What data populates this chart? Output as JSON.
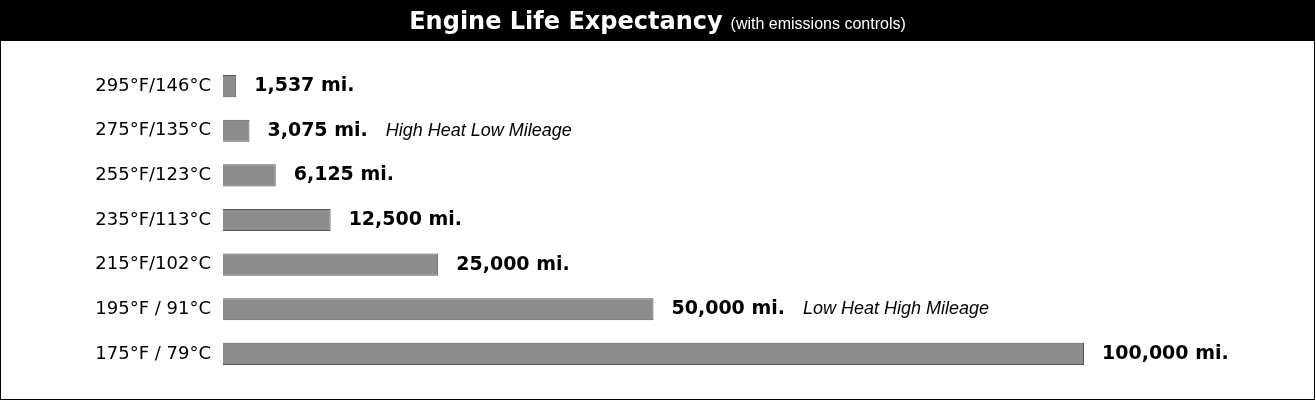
{
  "chart_data": {
    "type": "bar",
    "orientation": "horizontal",
    "title": "Engine Life Expectancy",
    "subtitle": "(with emissions controls)",
    "categories": [
      "295°F/146°C",
      "275°F/135°C",
      "255°F/123°C",
      "235°F/113°C",
      "215°F/102°C",
      "195°F / 91°C",
      "175°F / 79°C"
    ],
    "values": [
      1537,
      3075,
      6125,
      12500,
      25000,
      50000,
      100000
    ],
    "value_labels": [
      "1,537 mi.",
      "3,075 mi.",
      "6,125 mi.",
      "12,500 mi.",
      "25,000 mi.",
      "50,000 mi.",
      "100,000 mi."
    ],
    "color": "#8c8c8c",
    "grid": false,
    "legend": false,
    "tick_labels": "y",
    "annotations": [
      "High Heat Low Mileage",
      "Low Heat High Mileage"
    ]
  }
}
